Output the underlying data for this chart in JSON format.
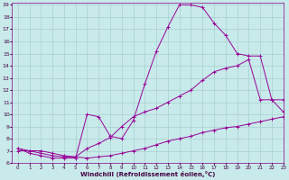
{
  "xlabel": "Windchill (Refroidissement éolien,°C)",
  "bg_color": "#c8eaea",
  "grid_color": "#a8d0d0",
  "line_color": "#990099",
  "xlim": [
    -0.5,
    23
  ],
  "ylim": [
    6,
    19.2
  ],
  "yticks": [
    6,
    7,
    8,
    9,
    10,
    11,
    12,
    13,
    14,
    15,
    16,
    17,
    18,
    19
  ],
  "xticks": [
    0,
    1,
    2,
    3,
    4,
    5,
    6,
    7,
    8,
    9,
    10,
    11,
    12,
    13,
    14,
    15,
    16,
    17,
    18,
    19,
    20,
    21,
    22,
    23
  ],
  "line1_x": [
    0,
    1,
    2,
    3,
    4,
    5,
    6,
    7,
    8,
    9,
    10,
    11,
    12,
    13,
    14,
    15,
    16,
    17,
    18,
    19,
    20,
    21,
    22,
    23
  ],
  "line1_y": [
    7.0,
    7.0,
    7.0,
    6.8,
    6.6,
    6.5,
    6.4,
    6.5,
    6.6,
    6.8,
    7.0,
    7.2,
    7.5,
    7.8,
    8.0,
    8.2,
    8.5,
    8.7,
    8.9,
    9.0,
    9.2,
    9.4,
    9.6,
    9.8
  ],
  "line2_x": [
    0,
    1,
    2,
    3,
    4,
    5,
    6,
    7,
    8,
    9,
    10,
    11,
    12,
    13,
    14,
    15,
    16,
    17,
    18,
    19,
    20,
    21,
    22,
    23
  ],
  "line2_y": [
    7.2,
    7.0,
    6.8,
    6.6,
    6.5,
    6.5,
    7.2,
    7.6,
    8.1,
    9.0,
    9.8,
    10.2,
    10.5,
    11.0,
    11.5,
    12.0,
    12.8,
    13.5,
    13.8,
    14.0,
    14.5,
    11.2,
    11.2,
    10.2
  ],
  "line3_x": [
    0,
    1,
    2,
    3,
    4,
    5,
    6,
    7,
    8,
    9,
    10,
    11,
    12,
    13,
    14,
    15,
    16,
    17,
    18,
    19,
    20,
    21,
    22,
    23
  ],
  "line3_y": [
    7.2,
    6.8,
    6.6,
    6.4,
    6.4,
    6.4,
    10.0,
    9.8,
    8.2,
    8.0,
    9.5,
    12.5,
    15.2,
    17.2,
    19.0,
    19.0,
    18.8,
    17.5,
    16.5,
    15.0,
    14.8,
    14.8,
    11.2,
    11.2
  ]
}
